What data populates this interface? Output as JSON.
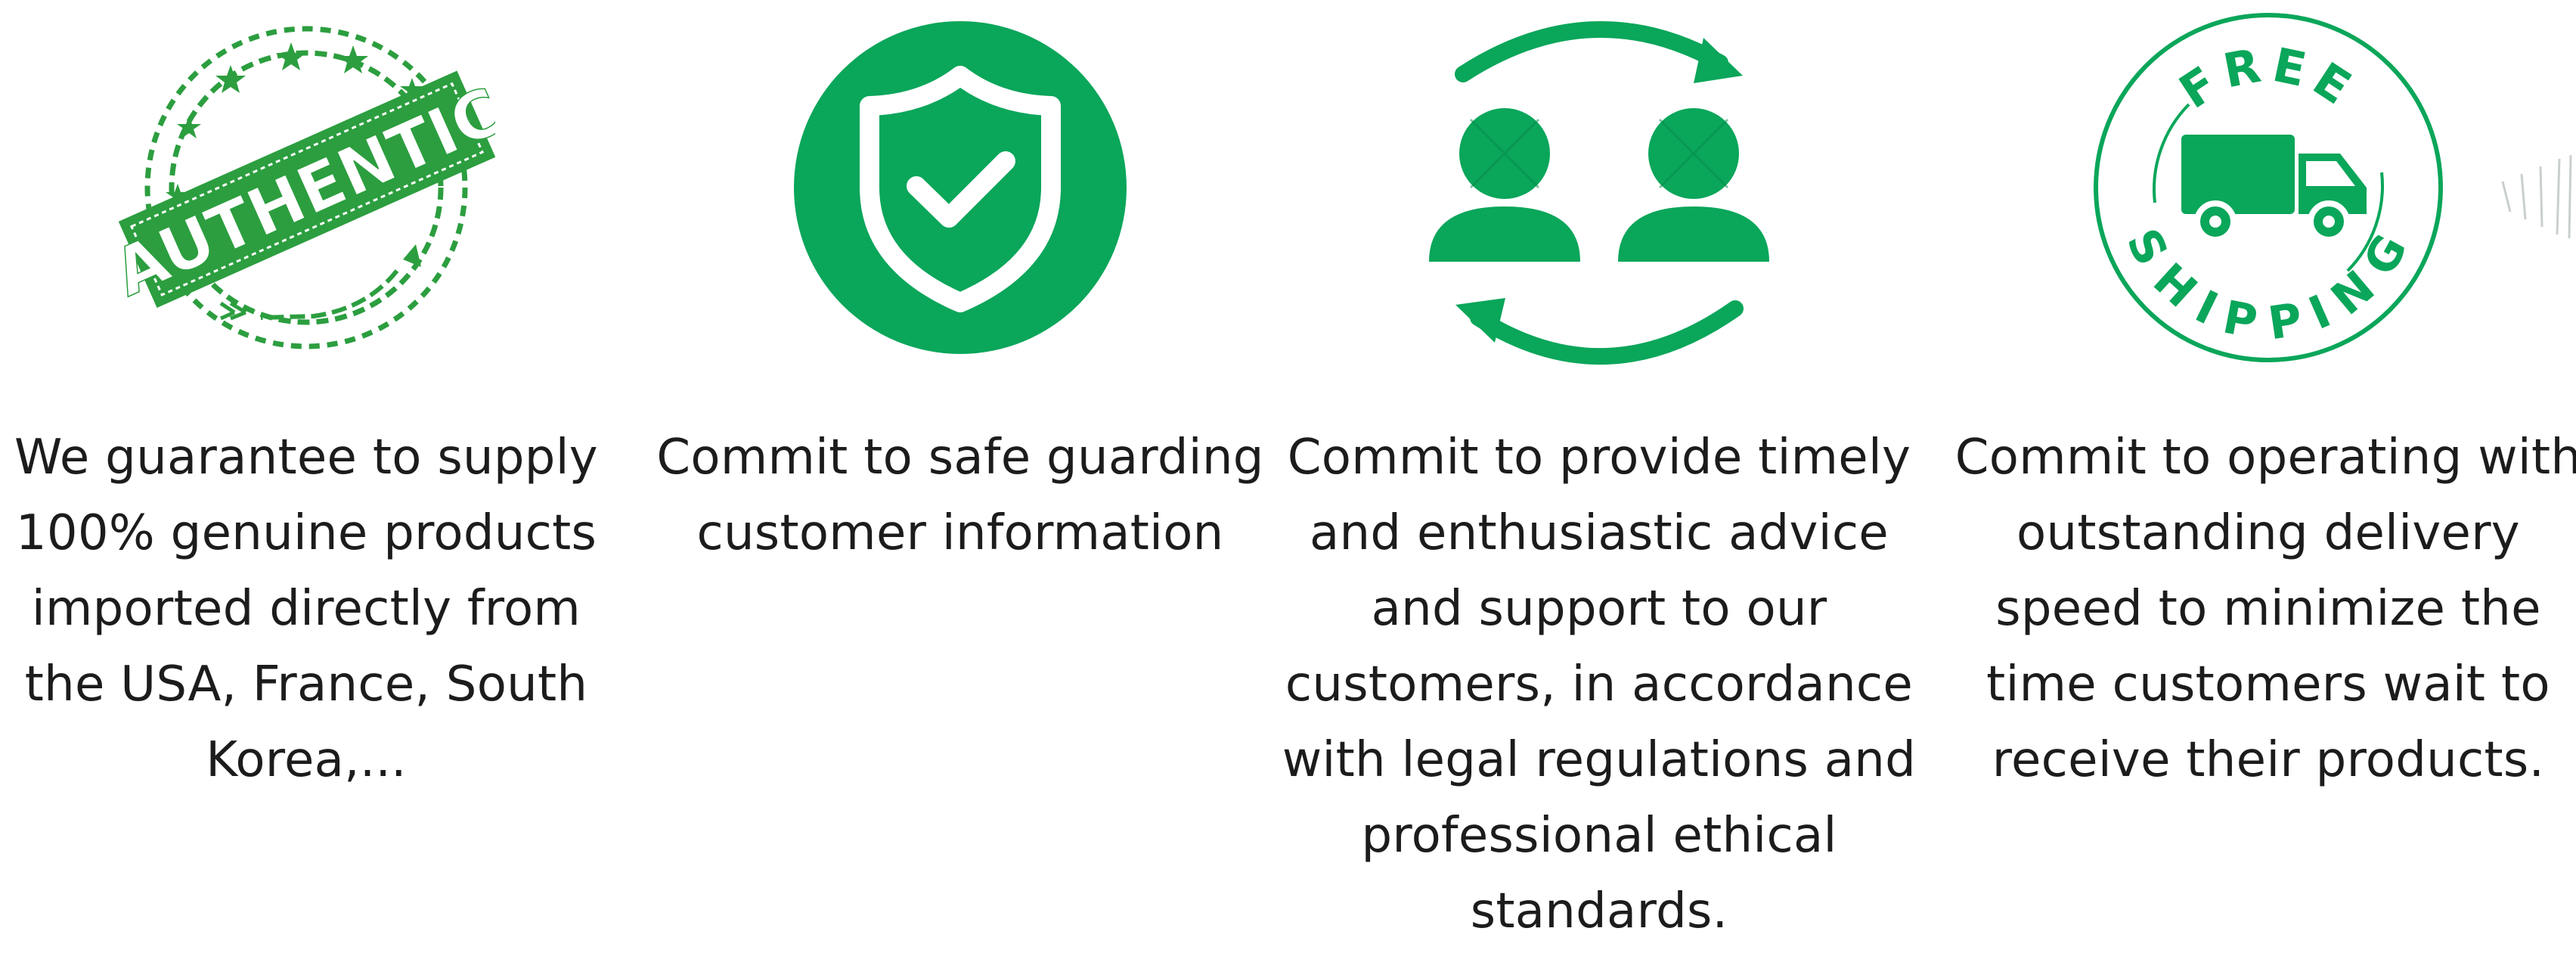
{
  "colors": {
    "brand_green": "#0aa65a",
    "stamp_green": "#2c9e3f",
    "text": "#1c1c1c"
  },
  "features": [
    {
      "icon": "authentic-stamp-icon",
      "stamp_text": "AUTHENTIC",
      "text": "We guarantee to supply 100% genuine products imported directly from the USA, France, South Korea,..."
    },
    {
      "icon": "shield-check-icon",
      "text": "Commit to safe guarding customer information"
    },
    {
      "icon": "customer-support-exchange-icon",
      "text": "Commit to provide timely and enthusiastic advice and support to our customers, in accordance with legal regulations and professional ethical standards."
    },
    {
      "icon": "free-shipping-truck-icon",
      "badge_top": "FREE",
      "badge_bottom": "SHIPPING",
      "text": "Commit to operating with outstanding delivery speed to minimize the time customers wait to receive their products."
    }
  ]
}
